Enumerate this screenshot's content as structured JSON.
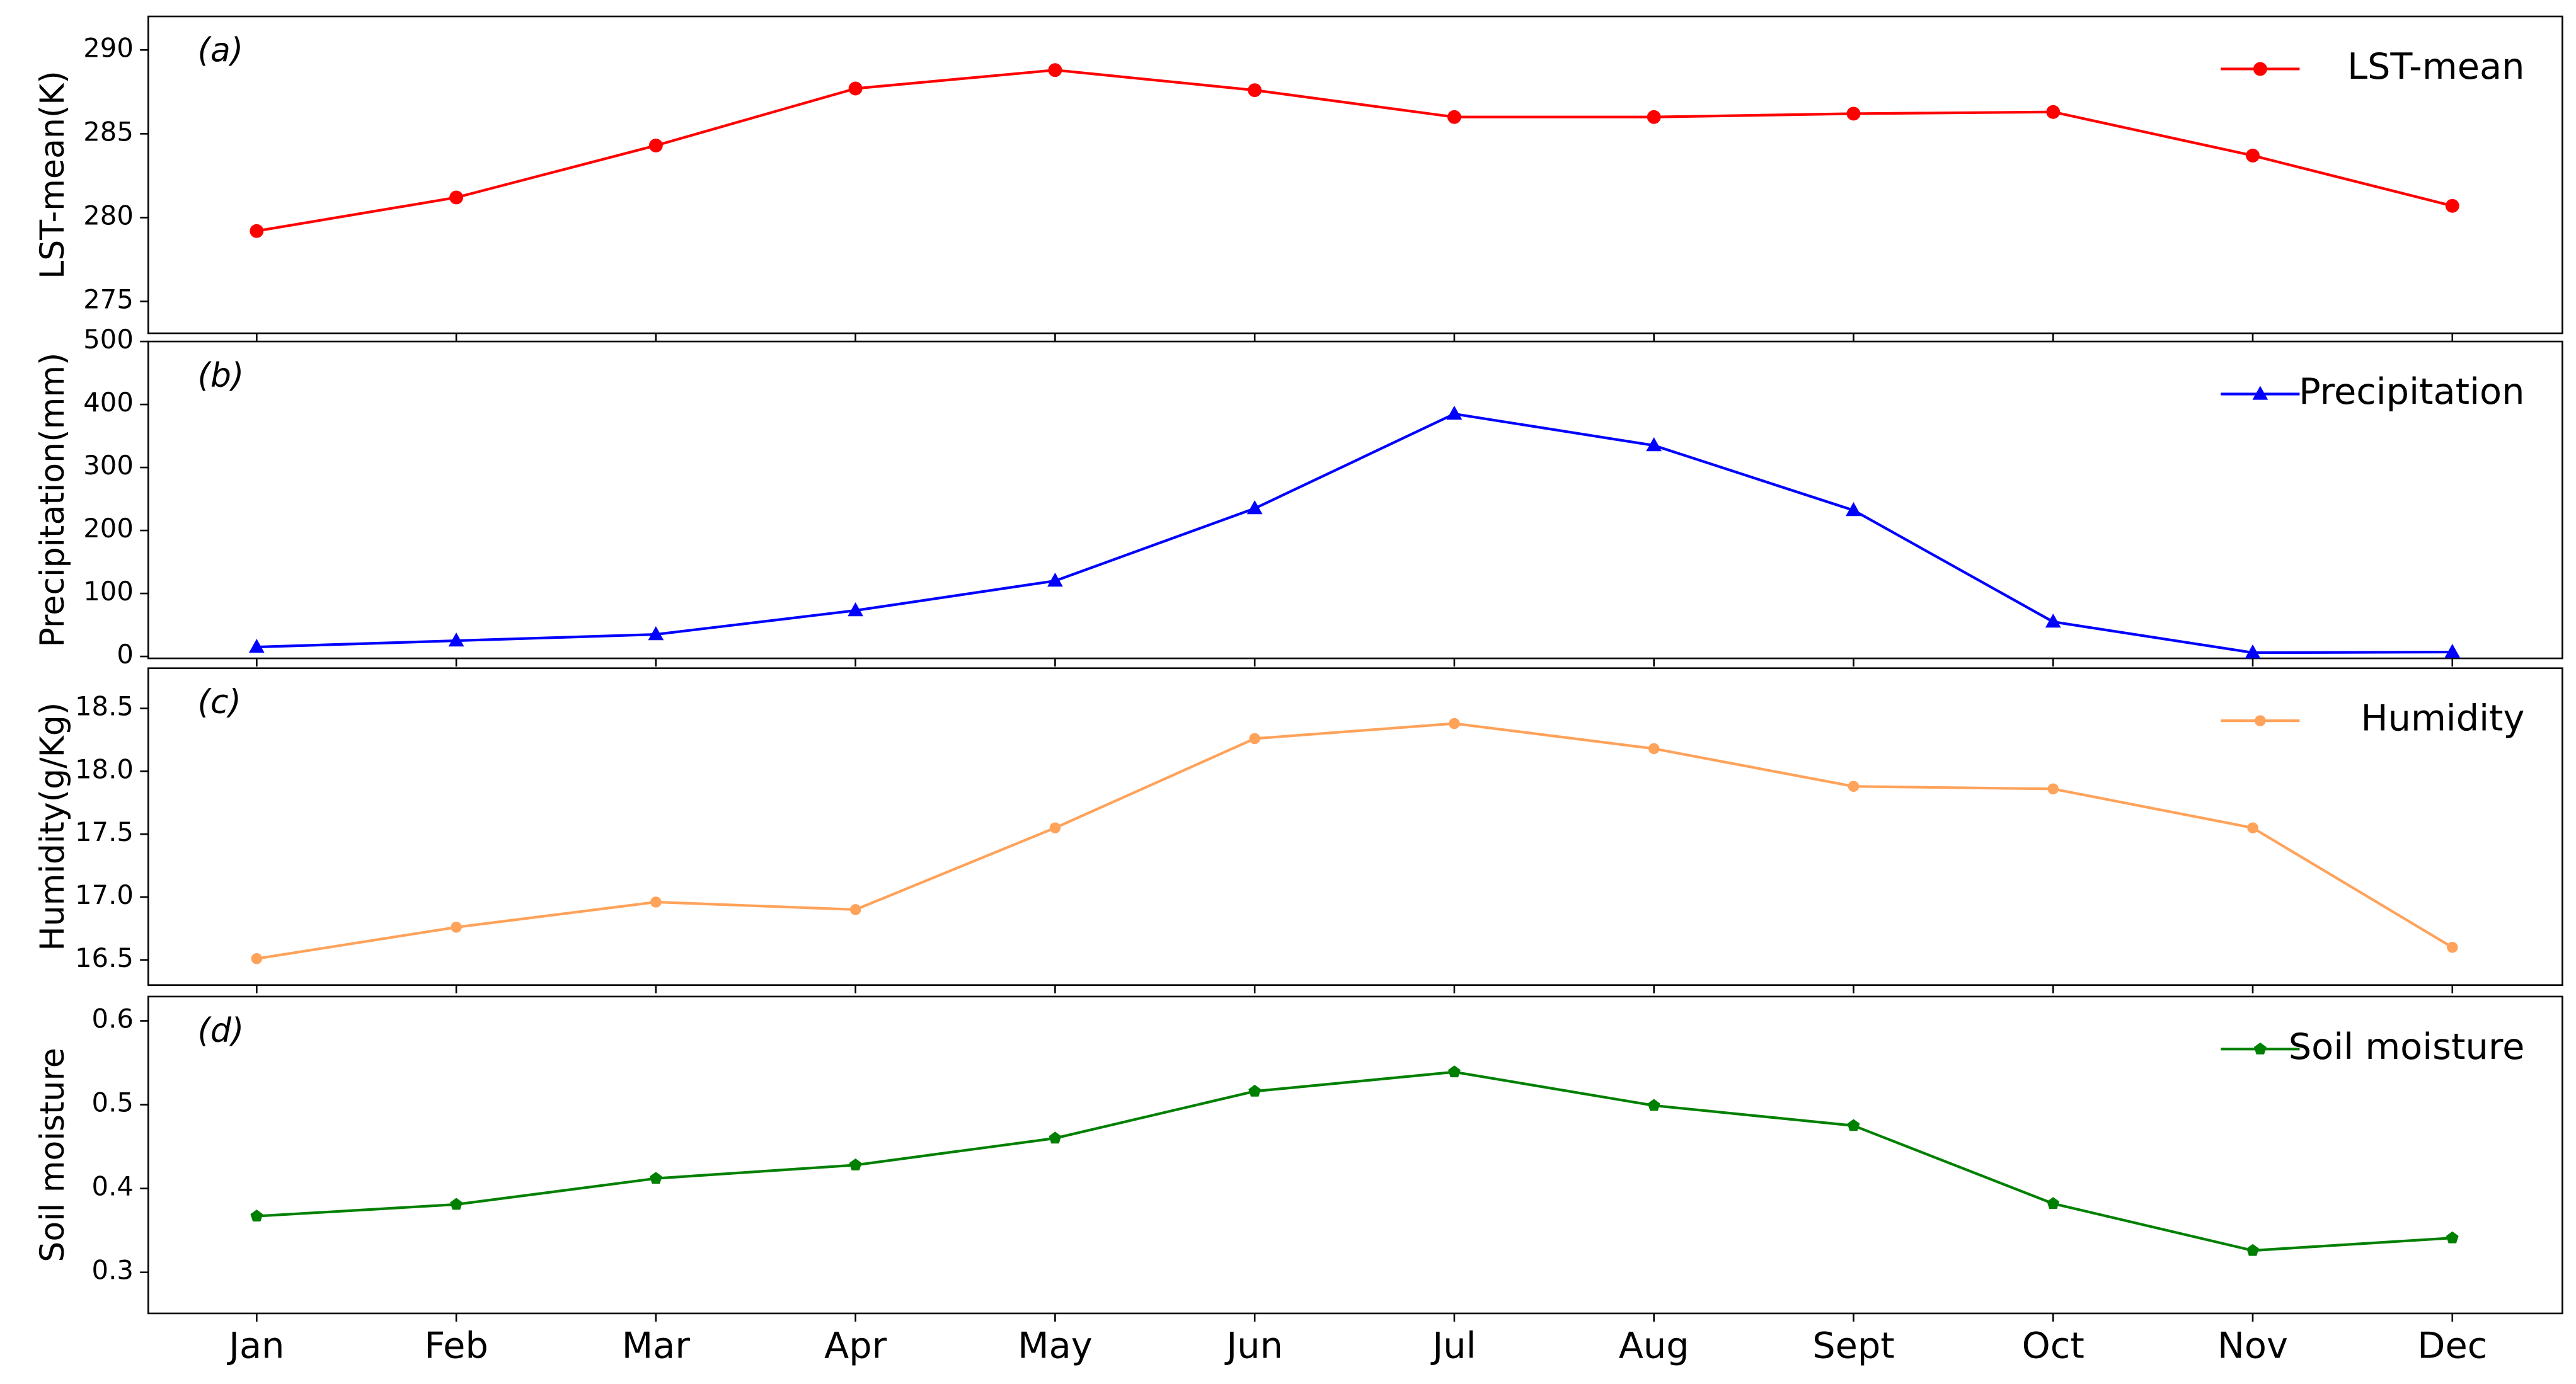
{
  "chart_data": [
    {
      "type": "line",
      "annotation": "(a)",
      "ylabel": "LST-mean(K)",
      "legend": "upper right",
      "marker": "o",
      "series": [
        {
          "name": "LST-mean",
          "color": "#ff0000",
          "values": [
            279.2,
            281.2,
            284.3,
            287.7,
            288.8,
            287.6,
            286.0,
            286.0,
            286.2,
            286.3,
            283.7,
            280.7
          ]
        }
      ],
      "ylim": [
        273.1,
        292
      ],
      "yticks": [
        275,
        280,
        285,
        290
      ]
    },
    {
      "type": "line",
      "annotation": "(b)",
      "ylabel": "Precipitation(mm)",
      "legend": "upper right",
      "marker": "^",
      "series": [
        {
          "name": "Precipitation",
          "color": "#0000ff",
          "values": [
            15,
            25,
            35,
            73,
            120,
            235,
            385,
            335,
            232,
            55,
            6,
            7
          ]
        }
      ],
      "ylim": [
        -3,
        500
      ],
      "yticks": [
        0,
        100,
        200,
        300,
        400,
        500
      ]
    },
    {
      "type": "line",
      "annotation": "(c)",
      "ylabel": "Humidity(g/Kg)",
      "legend": "upper right",
      "marker": "o",
      "series": [
        {
          "name": "Humidity",
          "color": "#ffa25a",
          "values": [
            16.51,
            16.76,
            16.96,
            16.9,
            17.55,
            18.26,
            18.38,
            18.18,
            17.88,
            17.86,
            17.55,
            16.6
          ]
        }
      ],
      "ylim": [
        16.3,
        18.82
      ],
      "yticks": [
        16.5,
        {
          "value": 17,
          "label": "17.0"
        },
        17.5,
        {
          "value": 18,
          "label": "18.0"
        },
        18.5
      ]
    },
    {
      "type": "line",
      "annotation": "(d)",
      "ylabel": "Soil moisture",
      "legend": "upper right",
      "marker": "p",
      "categories": [
        "Jan",
        "Feb",
        "Mar",
        "Apr",
        "May",
        "Jun",
        "Jul",
        "Aug",
        "Sept",
        "Oct",
        "Nov",
        "Dec"
      ],
      "series": [
        {
          "name": "Soil moisture",
          "color": "#008000",
          "values": [
            0.367,
            0.381,
            0.412,
            0.428,
            0.46,
            0.516,
            0.539,
            0.499,
            0.475,
            0.382,
            0.326,
            0.341
          ]
        }
      ],
      "ylim": [
        0.251,
        0.629
      ],
      "yticks": [
        0.3,
        0.4,
        0.5,
        0.6
      ]
    }
  ]
}
